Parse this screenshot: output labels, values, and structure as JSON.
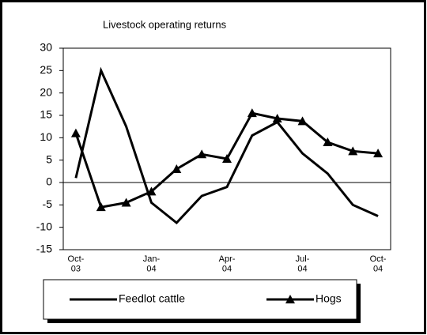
{
  "chart_data": {
    "type": "line",
    "title": "Livestock operating returns",
    "categories": [
      "Oct-\n03",
      null,
      null,
      "Jan-\n04",
      null,
      null,
      "Apr-\n04",
      null,
      null,
      "Jul-\n04",
      null,
      null,
      "Oct-\n04"
    ],
    "series": [
      {
        "name": "Feedlot cattle",
        "color": "#000000",
        "marker": null,
        "values": [
          1,
          25,
          12.5,
          -4.5,
          -9,
          -3,
          -1,
          10.5,
          13.5,
          6.5,
          2,
          -5,
          -7.5
        ]
      },
      {
        "name": "Hogs",
        "color": "#000000",
        "marker": "triangle",
        "values": [
          11,
          -5.5,
          -4.5,
          -2,
          3,
          6.3,
          5.3,
          15.5,
          14.3,
          13.7,
          9,
          7,
          6.5
        ]
      }
    ],
    "ylim": [
      -15,
      30
    ],
    "yticks": [
      -15,
      -10,
      -5,
      0,
      5,
      10,
      15,
      20,
      25,
      30
    ],
    "grid": false,
    "legend": "bottom"
  }
}
